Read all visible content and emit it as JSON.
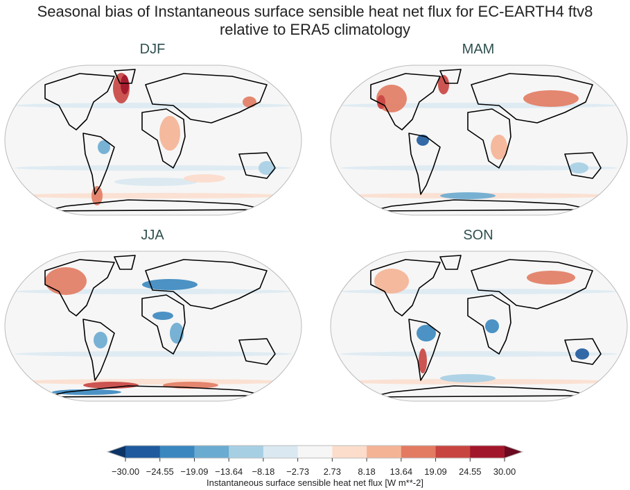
{
  "title_line1": "Seasonal bias of Instantaneous surface sensible heat net flux for EC-EARTH4 ftv8",
  "title_line2": "relative to ERA5 climatology",
  "panels": [
    {
      "season": "DJF"
    },
    {
      "season": "MAM"
    },
    {
      "season": "JJA"
    },
    {
      "season": "SON"
    }
  ],
  "colorbar": {
    "label": "Instantaneous surface sensible heat net flux [W m**-2]",
    "ticks": [
      "−30.00",
      "−24.55",
      "−19.09",
      "−13.64",
      "−8.18",
      "−2.73",
      "2.73",
      "8.18",
      "13.64",
      "19.09",
      "24.55",
      "30.00"
    ],
    "extend": "both",
    "colors": [
      "#1e5a9d",
      "#3a87bf",
      "#69abd1",
      "#a7cfe4",
      "#d9e8f1",
      "#f6f6f6",
      "#fcdccb",
      "#f5b395",
      "#e27b62",
      "#c84440",
      "#a2162b"
    ],
    "under_color": "#0d3466",
    "over_color": "#6b0a20"
  },
  "colormap": "RdBu_r",
  "range": [
    -30,
    30
  ]
}
